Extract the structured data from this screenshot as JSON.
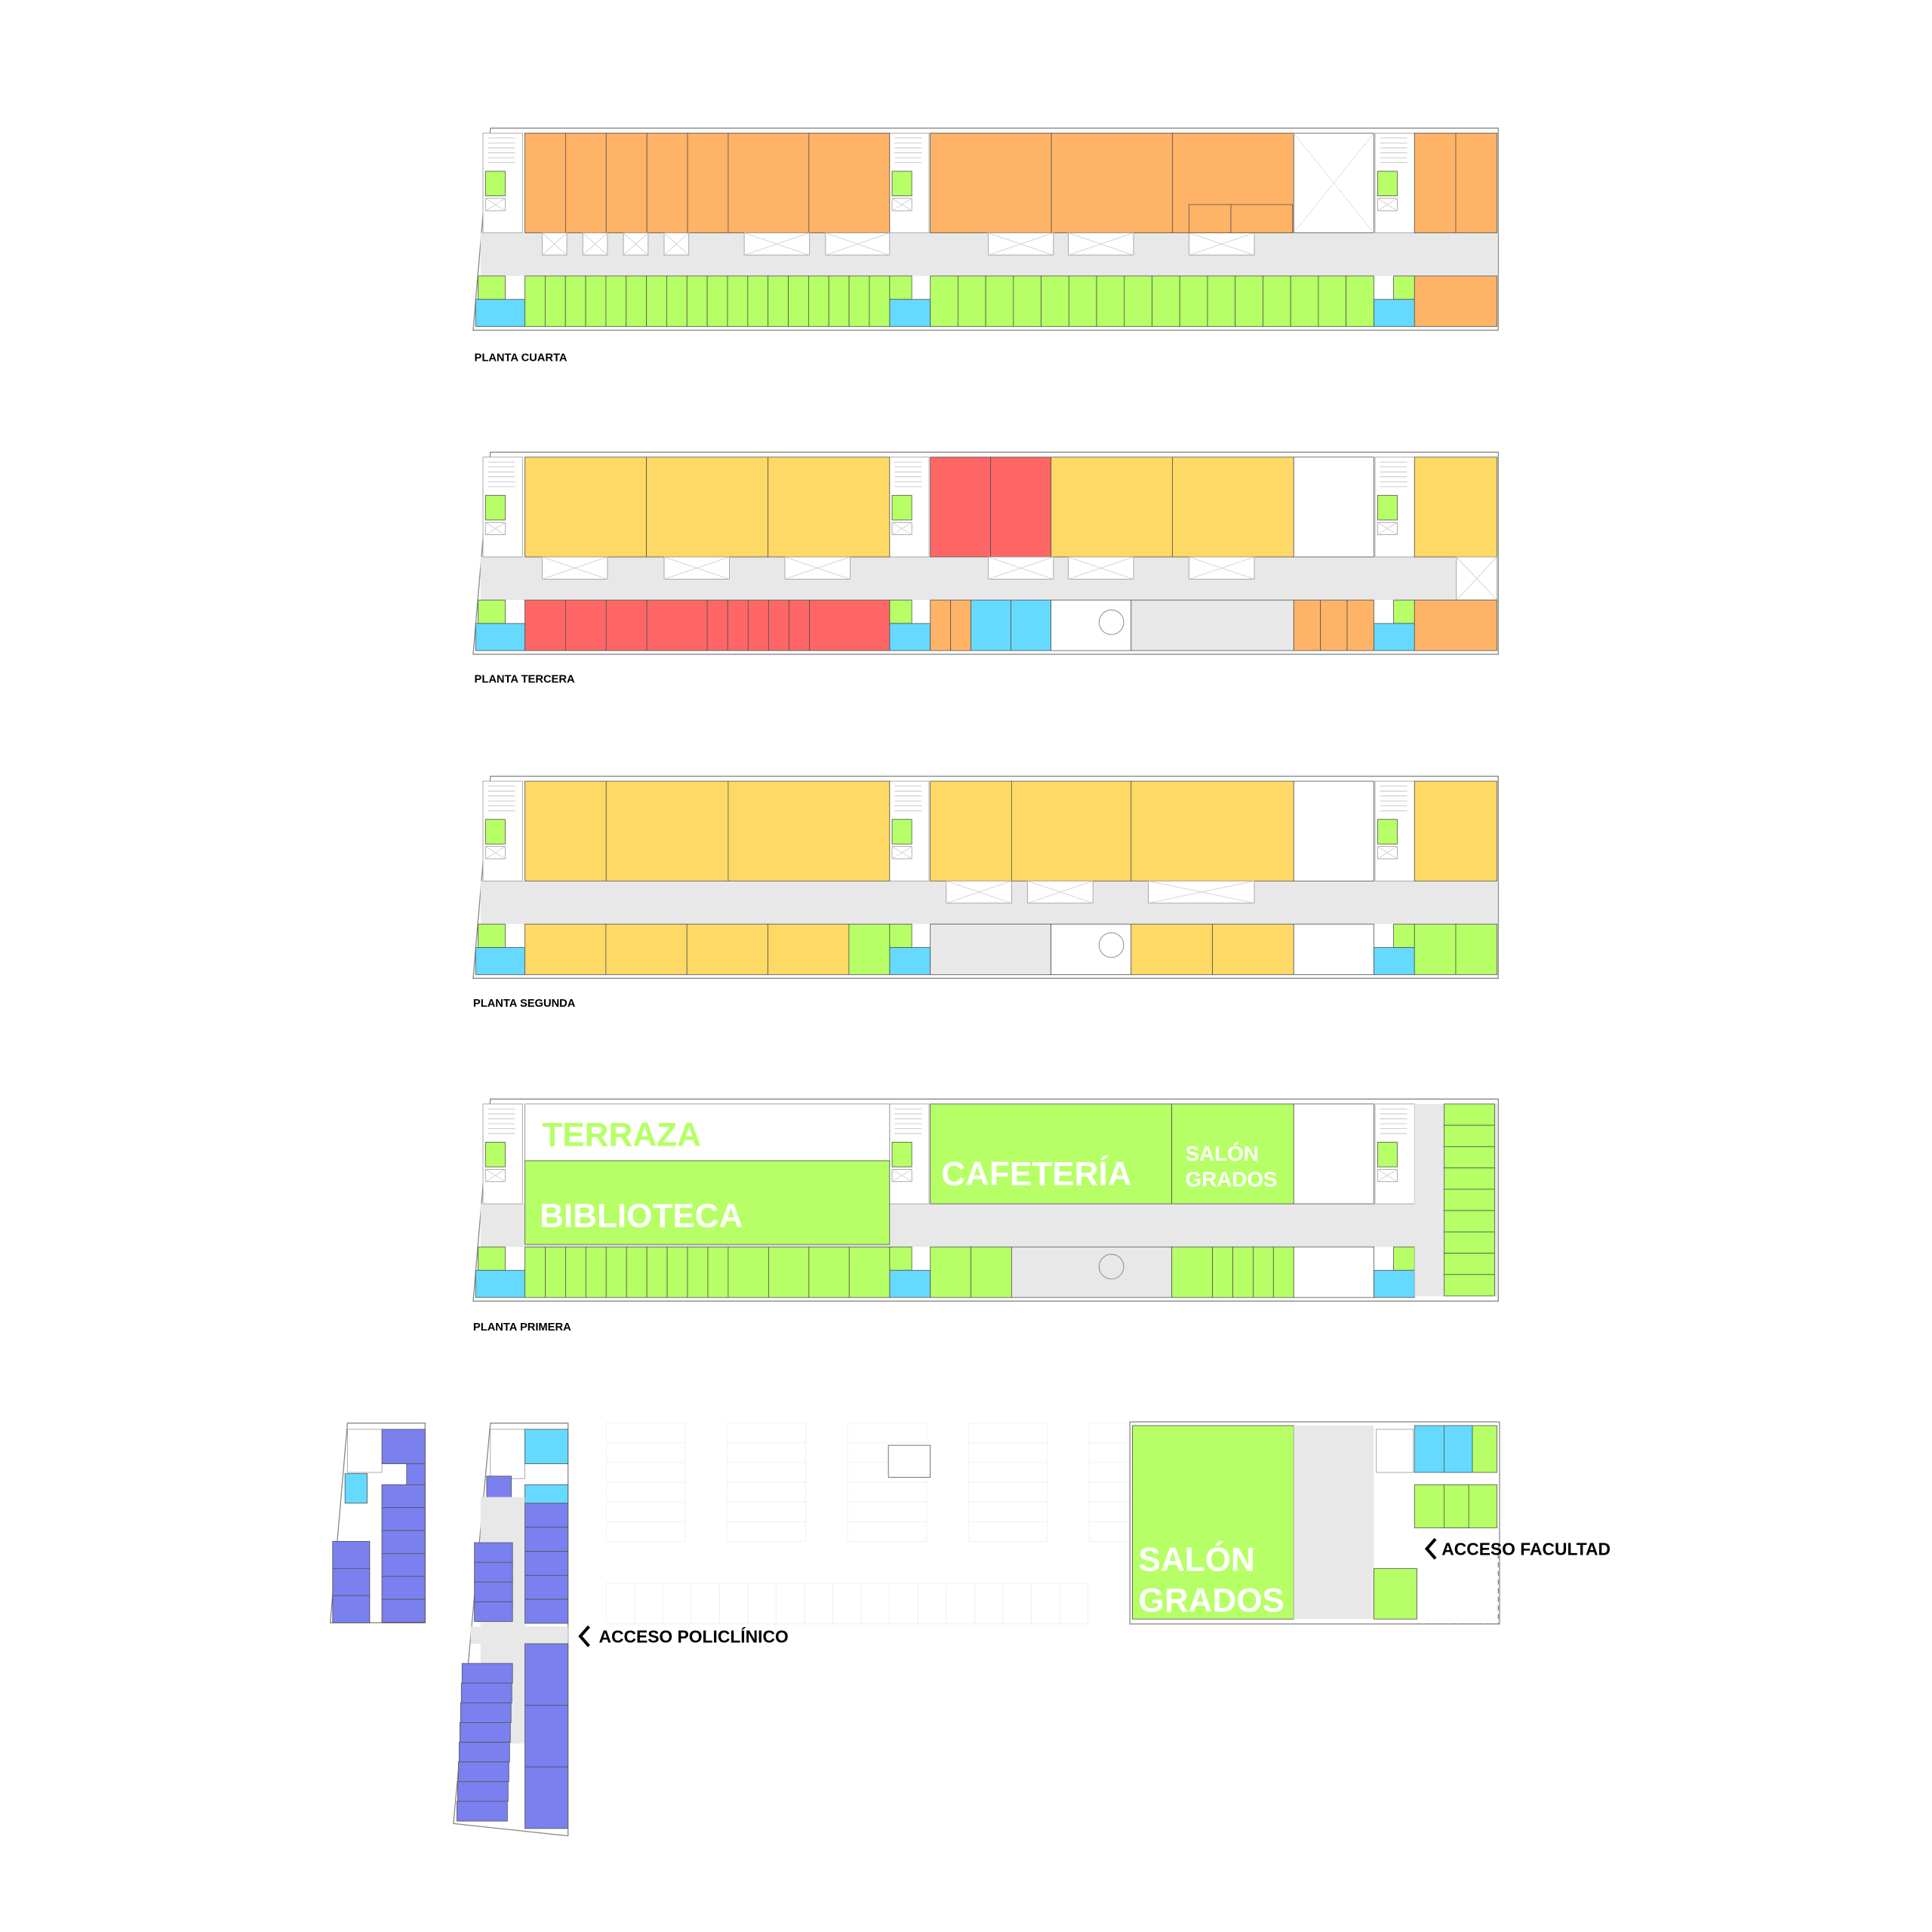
{
  "colors": {
    "orange": "#FFB366",
    "green": "#B6FF66",
    "cyan": "#66D9FF",
    "yellow": "#FFD966",
    "red": "#FF6666",
    "blue": "#7A80EE",
    "gray": "#E8E8E8",
    "white": "#FFFFFF"
  },
  "floors": {
    "cuarta": {
      "label": "PLANTA CUARTA"
    },
    "tercera": {
      "label": "PLANTA TERCERA"
    },
    "segunda": {
      "label": "PLANTA SEGUNDA"
    },
    "primera": {
      "label": "PLANTA PRIMERA",
      "rooms": {
        "terraza": "TERRAZA",
        "biblioteca": "BIBLIOTECA",
        "cafeteria": "CAFETERÍA",
        "salon_line1": "SALÓN",
        "salon_line2": "GRADOS"
      }
    },
    "baja": {
      "rooms": {
        "salon_line1": "SALÓN",
        "salon_line2": "GRADOS"
      },
      "access": {
        "facultad": "ACCESO FACULTAD",
        "policlinico": "ACCESO POLICLÍNICO"
      },
      "access_icon": "chevron-left-icon"
    }
  }
}
